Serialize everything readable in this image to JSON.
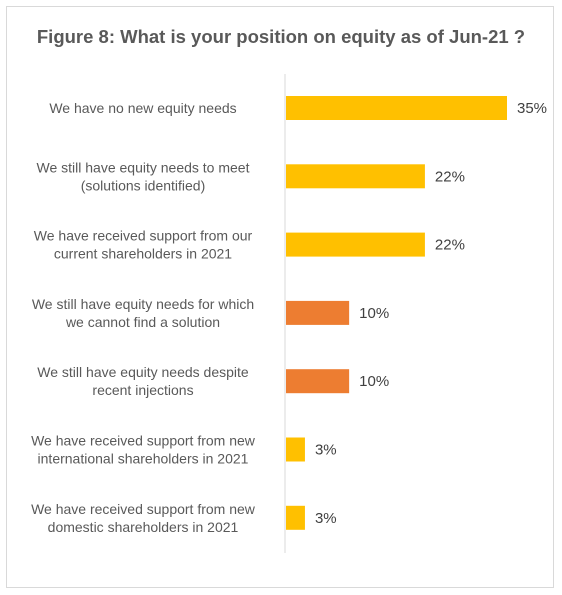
{
  "chart_data": {
    "type": "bar",
    "orientation": "horizontal",
    "title": "Figure 8: What is your position on equity as of Jun-21 ?",
    "categories": [
      [
        "We have no new equity needs"
      ],
      [
        "We still have equity needs to meet",
        "(solutions identified)"
      ],
      [
        "We have received support from our",
        "current shareholders in 2021"
      ],
      [
        "We still have equity needs for which",
        "we cannot find a solution"
      ],
      [
        "We still have equity needs despite",
        "recent injections"
      ],
      [
        "We have received support from new",
        "international shareholders in 2021"
      ],
      [
        "We have received support from new",
        "domestic shareholders in 2021"
      ]
    ],
    "values": [
      35,
      22,
      22,
      10,
      10,
      3,
      3
    ],
    "value_labels": [
      "35%",
      "22%",
      "22%",
      "10%",
      "10%",
      "3%",
      "3%"
    ],
    "bar_colors": [
      "#FFC000",
      "#FFC000",
      "#FFC000",
      "#ED7D31",
      "#ED7D31",
      "#FFC000",
      "#FFC000"
    ],
    "xlim": [
      0,
      35
    ],
    "grid": false,
    "legend": "none"
  }
}
